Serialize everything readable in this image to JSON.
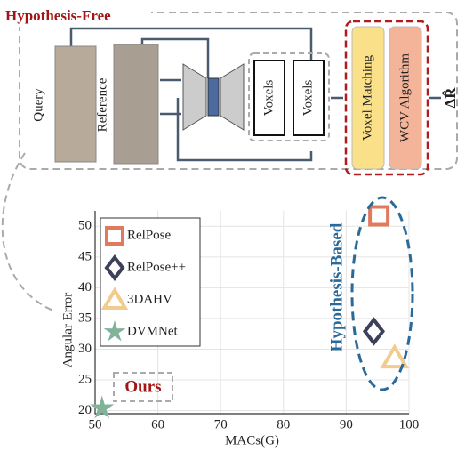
{
  "diagram": {
    "title": "Hypothesis-Free",
    "images": [
      "Query",
      "Reference"
    ],
    "voxels": [
      "Voxels",
      "Voxels"
    ],
    "modules": [
      "Voxel Matching",
      "WCV Algorithm"
    ],
    "output": "ΔR̂"
  },
  "chart_data": {
    "type": "scatter",
    "xlabel": "MACs(G)",
    "ylabel": "Angular Error",
    "xlim": [
      50,
      100
    ],
    "ylim": [
      19.5,
      52.5
    ],
    "xticks": [
      50,
      60,
      70,
      80,
      90,
      100
    ],
    "yticks": [
      20,
      25,
      30,
      35,
      40,
      45,
      50
    ],
    "grid": true,
    "series": [
      {
        "name": "RelPose",
        "color": "#e07a5f",
        "marker": "square",
        "x": [
          95.2
        ],
        "values": [
          51.7
        ]
      },
      {
        "name": "RelPose++",
        "color": "#3d405b",
        "marker": "diamond",
        "x": [
          94.4
        ],
        "values": [
          32.9
        ]
      },
      {
        "name": "3DAHV",
        "color": "#f2cc8f",
        "marker": "triangle",
        "x": [
          97.7
        ],
        "values": [
          28.6
        ]
      },
      {
        "name": "DVMNet",
        "color": "#81b29a",
        "marker": "star",
        "x": [
          51.1
        ],
        "values": [
          20.4
        ]
      }
    ],
    "annotations": [
      "Hypothesis-Based",
      "Ours"
    ]
  }
}
